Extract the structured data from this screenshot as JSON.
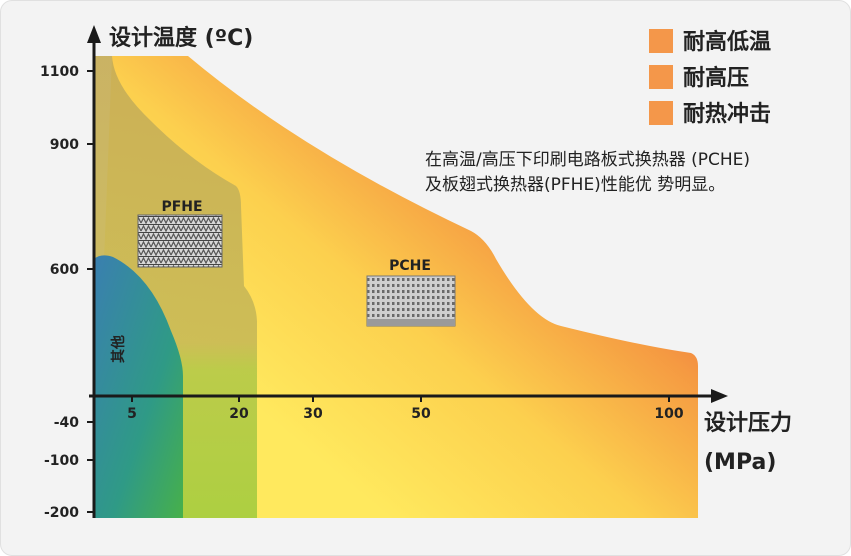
{
  "chart_data": {
    "type": "area",
    "ylabel": "设计温度 (ºC)",
    "xlabel_line1": "设计压力",
    "xlabel_line2": "(MPa)",
    "x_ticks": [
      "5",
      "20",
      "30",
      "50",
      "100"
    ],
    "y_ticks": [
      "1100",
      "900",
      "600",
      "-40",
      "-100",
      "-200"
    ],
    "legend": [
      {
        "label": "耐高低温",
        "color": "#f4974a"
      },
      {
        "label": "耐高压",
        "color": "#f4974a"
      },
      {
        "label": "耐热冲击",
        "color": "#f4974a"
      }
    ],
    "note_lines": [
      "在高温/高压下印刷电路板式换热器 (PCHE)",
      "及板翅式换热器(PFHE)性能优 势明显。"
    ],
    "regions": [
      {
        "name": "其他",
        "max_pressure_MPa": 10,
        "max_temp_C": 630,
        "min_temp_C": -200
      },
      {
        "name": "PFHE",
        "max_pressure_MPa": 23,
        "max_temp_C": 1150,
        "min_temp_C": -200
      },
      {
        "name": "PCHE",
        "max_pressure_MPa": 105,
        "max_temp_C": 1150,
        "min_temp_C": -200
      }
    ],
    "colors": {
      "other_top": "#3b83aa",
      "other_bottom": "#2fa36a",
      "pfhe": "#a9c44a",
      "pcbe_low": "#ffe45a",
      "pcbe_high": "#e9473a"
    }
  }
}
